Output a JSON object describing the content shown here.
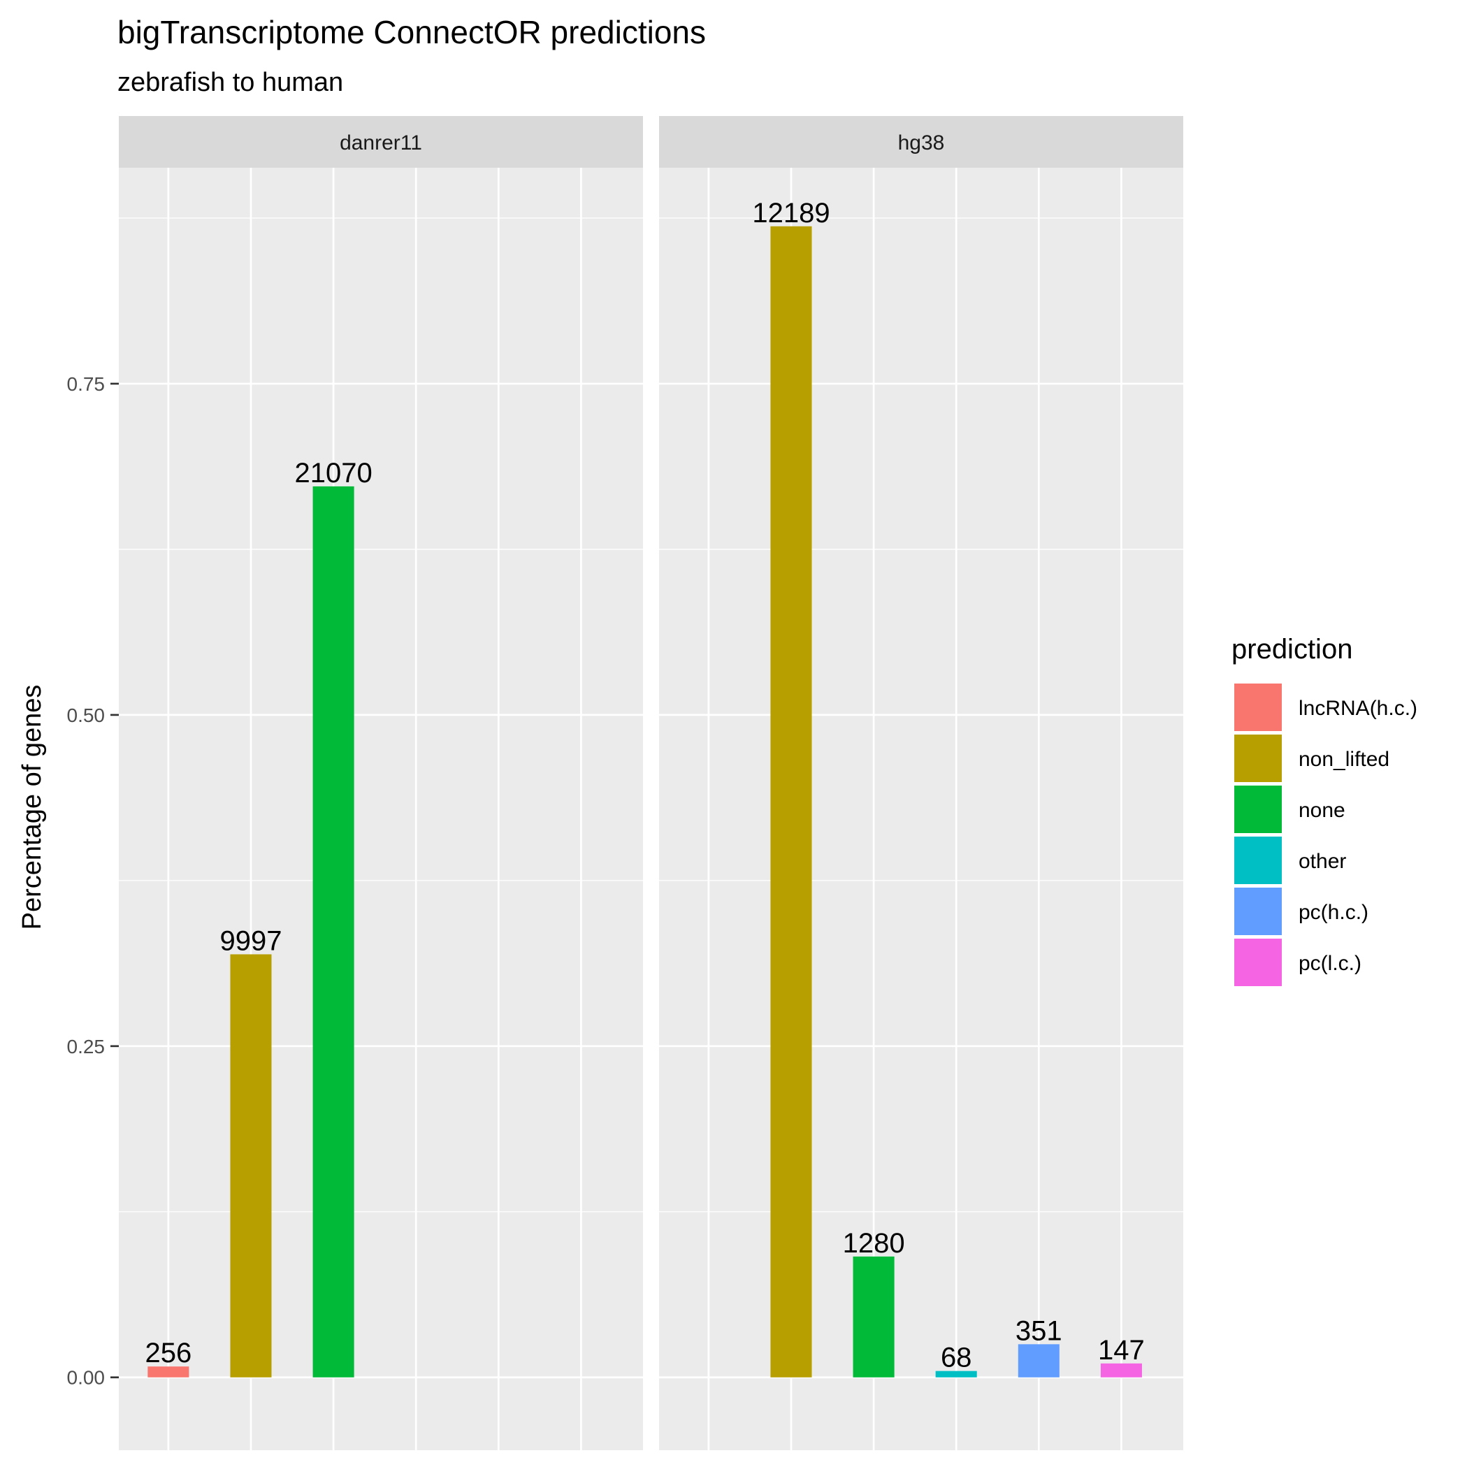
{
  "chart_data": {
    "type": "bar",
    "title": "bigTranscriptome ConnectOR predictions",
    "subtitle": "zebrafish to human",
    "ylabel": "Percentage of genes",
    "xlabel": "",
    "ylim": [
      -0.055,
      0.913
    ],
    "y_ticks": [
      0.0,
      0.25,
      0.5,
      0.75
    ],
    "y_tick_labels": [
      "0.00",
      "0.25",
      "0.50",
      "0.75"
    ],
    "categories": [
      "lncRNA(h.c.)",
      "non_lifted",
      "none",
      "other",
      "pc(h.c.)",
      "pc(l.c.)"
    ],
    "facets": [
      {
        "name": "danrer11",
        "bars": [
          {
            "category": "lncRNA(h.c.)",
            "value": 0.0082,
            "label": "256"
          },
          {
            "category": "non_lifted",
            "value": 0.3193,
            "label": "9997"
          },
          {
            "category": "none",
            "value": 0.6725,
            "label": "21070"
          }
        ]
      },
      {
        "name": "hg38",
        "bars": [
          {
            "category": "non_lifted",
            "value": 0.8688,
            "label": "12189"
          },
          {
            "category": "none",
            "value": 0.0912,
            "label": "1280"
          },
          {
            "category": "other",
            "value": 0.0048,
            "label": "68"
          },
          {
            "category": "pc(h.c.)",
            "value": 0.025,
            "label": "351"
          },
          {
            "category": "pc(l.c.)",
            "value": 0.0105,
            "label": "147"
          }
        ]
      }
    ],
    "legend": {
      "title": "prediction",
      "position": "right",
      "entries": [
        {
          "label": "lncRNA(h.c.)",
          "color": "#F8766D"
        },
        {
          "label": "non_lifted",
          "color": "#B79F00"
        },
        {
          "label": "none",
          "color": "#00BA38"
        },
        {
          "label": "other",
          "color": "#00BFC4"
        },
        {
          "label": "pc(h.c.)",
          "color": "#619CFF"
        },
        {
          "label": "pc(l.c.)",
          "color": "#F564E3"
        }
      ]
    },
    "grid": true
  }
}
